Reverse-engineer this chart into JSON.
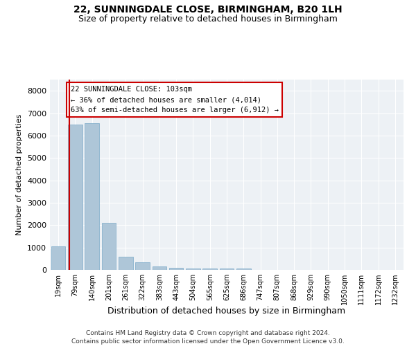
{
  "title1": "22, SUNNINGDALE CLOSE, BIRMINGHAM, B20 1LH",
  "title2": "Size of property relative to detached houses in Birmingham",
  "xlabel": "Distribution of detached houses by size in Birmingham",
  "ylabel": "Number of detached properties",
  "footer1": "Contains HM Land Registry data © Crown copyright and database right 2024.",
  "footer2": "Contains public sector information licensed under the Open Government Licence v3.0.",
  "annotation_line1": "22 SUNNINGDALE CLOSE: 103sqm",
  "annotation_line2": "← 36% of detached houses are smaller (4,014)",
  "annotation_line3": "63% of semi-detached houses are larger (6,912) →",
  "bar_color": "#aec6d8",
  "bar_edge_color": "#7aaac8",
  "redline_color": "#cc0000",
  "categories": [
    "19sqm",
    "79sqm",
    "140sqm",
    "201sqm",
    "261sqm",
    "322sqm",
    "383sqm",
    "443sqm",
    "504sqm",
    "565sqm",
    "625sqm",
    "686sqm",
    "747sqm",
    "807sqm",
    "868sqm",
    "929sqm",
    "990sqm",
    "1050sqm",
    "1111sqm",
    "1172sqm",
    "1232sqm"
  ],
  "values": [
    1050,
    6500,
    6550,
    2100,
    580,
    340,
    145,
    95,
    75,
    65,
    60,
    55,
    0,
    0,
    0,
    0,
    0,
    0,
    0,
    0,
    0
  ],
  "redline_x": 0.64,
  "ylim": [
    0,
    8500
  ],
  "yticks": [
    0,
    1000,
    2000,
    3000,
    4000,
    5000,
    6000,
    7000,
    8000
  ],
  "background_color": "#edf1f5",
  "grid_color": "#ffffff",
  "fig_width": 6.0,
  "fig_height": 5.0,
  "fig_dpi": 100
}
